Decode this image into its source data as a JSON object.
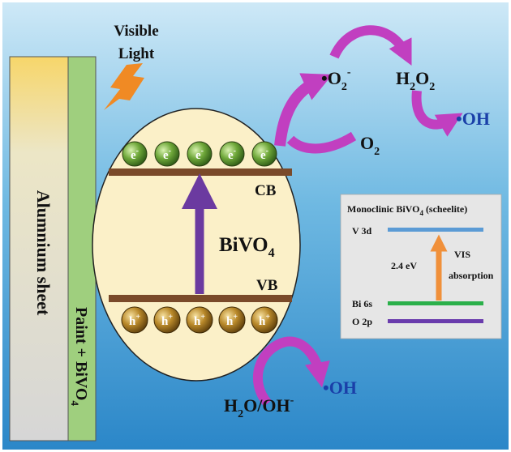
{
  "labels": {
    "visible": "Visible",
    "light": "Light",
    "alumnium_sheet": "Alumnium sheet",
    "paint_bivo4_main": "Paint + BiVO",
    "paint_bivo4_sub": "4",
    "electron_symbol": "e",
    "electron_sup": "-",
    "hole_symbol": "h",
    "hole_sup": "+",
    "cb": "CB",
    "vb": "VB",
    "bivo4_main": "BiVO",
    "bivo4_sub": "4",
    "superoxide_main": "•O",
    "superoxide_sub": "2",
    "superoxide_sup": "-",
    "h2o2_h": "H",
    "h2o2_sub1": "2",
    "h2o2_o": "O",
    "h2o2_sub2": "2",
    "oh_top": "•OH",
    "o2_main": "O",
    "o2_sub": "2",
    "water_main": "H",
    "water_sub": "2",
    "water_rest": "O/OH",
    "water_sup": "-",
    "oh_bottom": "•OH"
  },
  "inset": {
    "title_main": "Monoclinic BiVO",
    "title_sub": "4",
    "title_rest": " (scheelite)",
    "v3d": "V 3d",
    "bi6s": "Bi 6s",
    "o2p": "O 2p",
    "gap": "2.4 eV",
    "vis": "VIS",
    "absorption": "absorption"
  },
  "colors": {
    "alumnium_sheet": "#d9d9d9",
    "paint_strip": "#9fcf7e",
    "ellipse_fill": "#fbf0c8",
    "band": "#7a4a2a",
    "excitation_arrow": "#6b3aa0",
    "reaction_arrows": "#c13fc0",
    "lightning": "#f08a24",
    "v3d": "#5b9bd5",
    "bi6s": "#2bb04a",
    "o2p": "#6a3cad",
    "gap_arrow": "#f0903a"
  },
  "icons": {
    "light": "lightning-bolt-icon",
    "electron": "green-sphere-icon",
    "hole": "gold-sphere-icon"
  }
}
